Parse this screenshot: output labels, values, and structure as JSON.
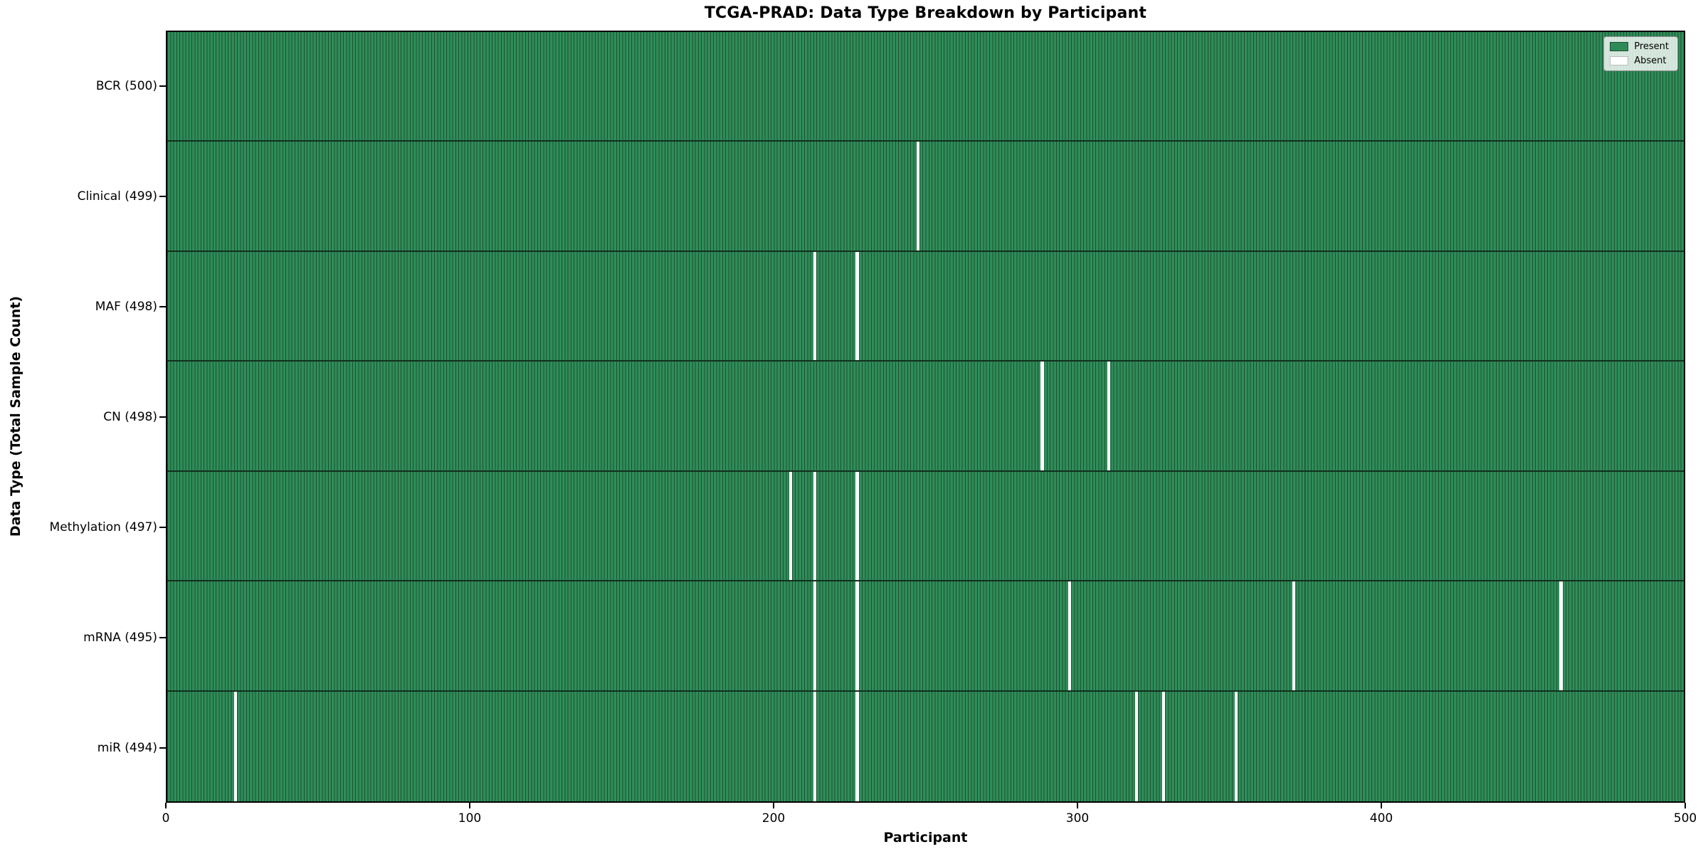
{
  "figure": {
    "title": "TCGA-PRAD: Data Type Breakdown by Participant",
    "xlabel": "Participant",
    "ylabel": "Data Type (Total Sample Count)"
  },
  "chart_data": {
    "type": "heatmap",
    "title": "TCGA-PRAD: Data Type Breakdown by Participant",
    "xlabel": "Participant",
    "ylabel": "Data Type (Total Sample Count)",
    "x_range": [
      0,
      500
    ],
    "x_ticks": [
      0,
      100,
      200,
      300,
      400,
      500
    ],
    "n_participants": 500,
    "grid": false,
    "legend_position": "upper-right",
    "colors": {
      "present": "#2e8b57",
      "absent": "#ffffff",
      "cell_edge": "#1c5130"
    },
    "legend": [
      {
        "label": "Present",
        "color": "#2e8b57"
      },
      {
        "label": "Absent",
        "color": "#ffffff"
      }
    ],
    "rows": [
      {
        "label": "BCR (500)",
        "data_type": "BCR",
        "total_samples": 500,
        "absent_participants": []
      },
      {
        "label": "Clinical (499)",
        "data_type": "Clinical",
        "total_samples": 499,
        "absent_participants": [
          247
        ]
      },
      {
        "label": "MAF (498)",
        "data_type": "MAF",
        "total_samples": 498,
        "absent_participants": [
          213,
          227
        ]
      },
      {
        "label": "CN (498)",
        "data_type": "CN",
        "total_samples": 498,
        "absent_participants": [
          288,
          310
        ]
      },
      {
        "label": "Methylation (497)",
        "data_type": "Methylation",
        "total_samples": 497,
        "absent_participants": [
          205,
          213,
          227
        ]
      },
      {
        "label": "mRNA (495)",
        "data_type": "mRNA",
        "total_samples": 495,
        "absent_participants": [
          213,
          227,
          297,
          371,
          459
        ]
      },
      {
        "label": "miR (494)",
        "data_type": "miR",
        "total_samples": 494,
        "absent_participants": [
          22,
          213,
          227,
          319,
          328,
          352
        ]
      }
    ]
  }
}
